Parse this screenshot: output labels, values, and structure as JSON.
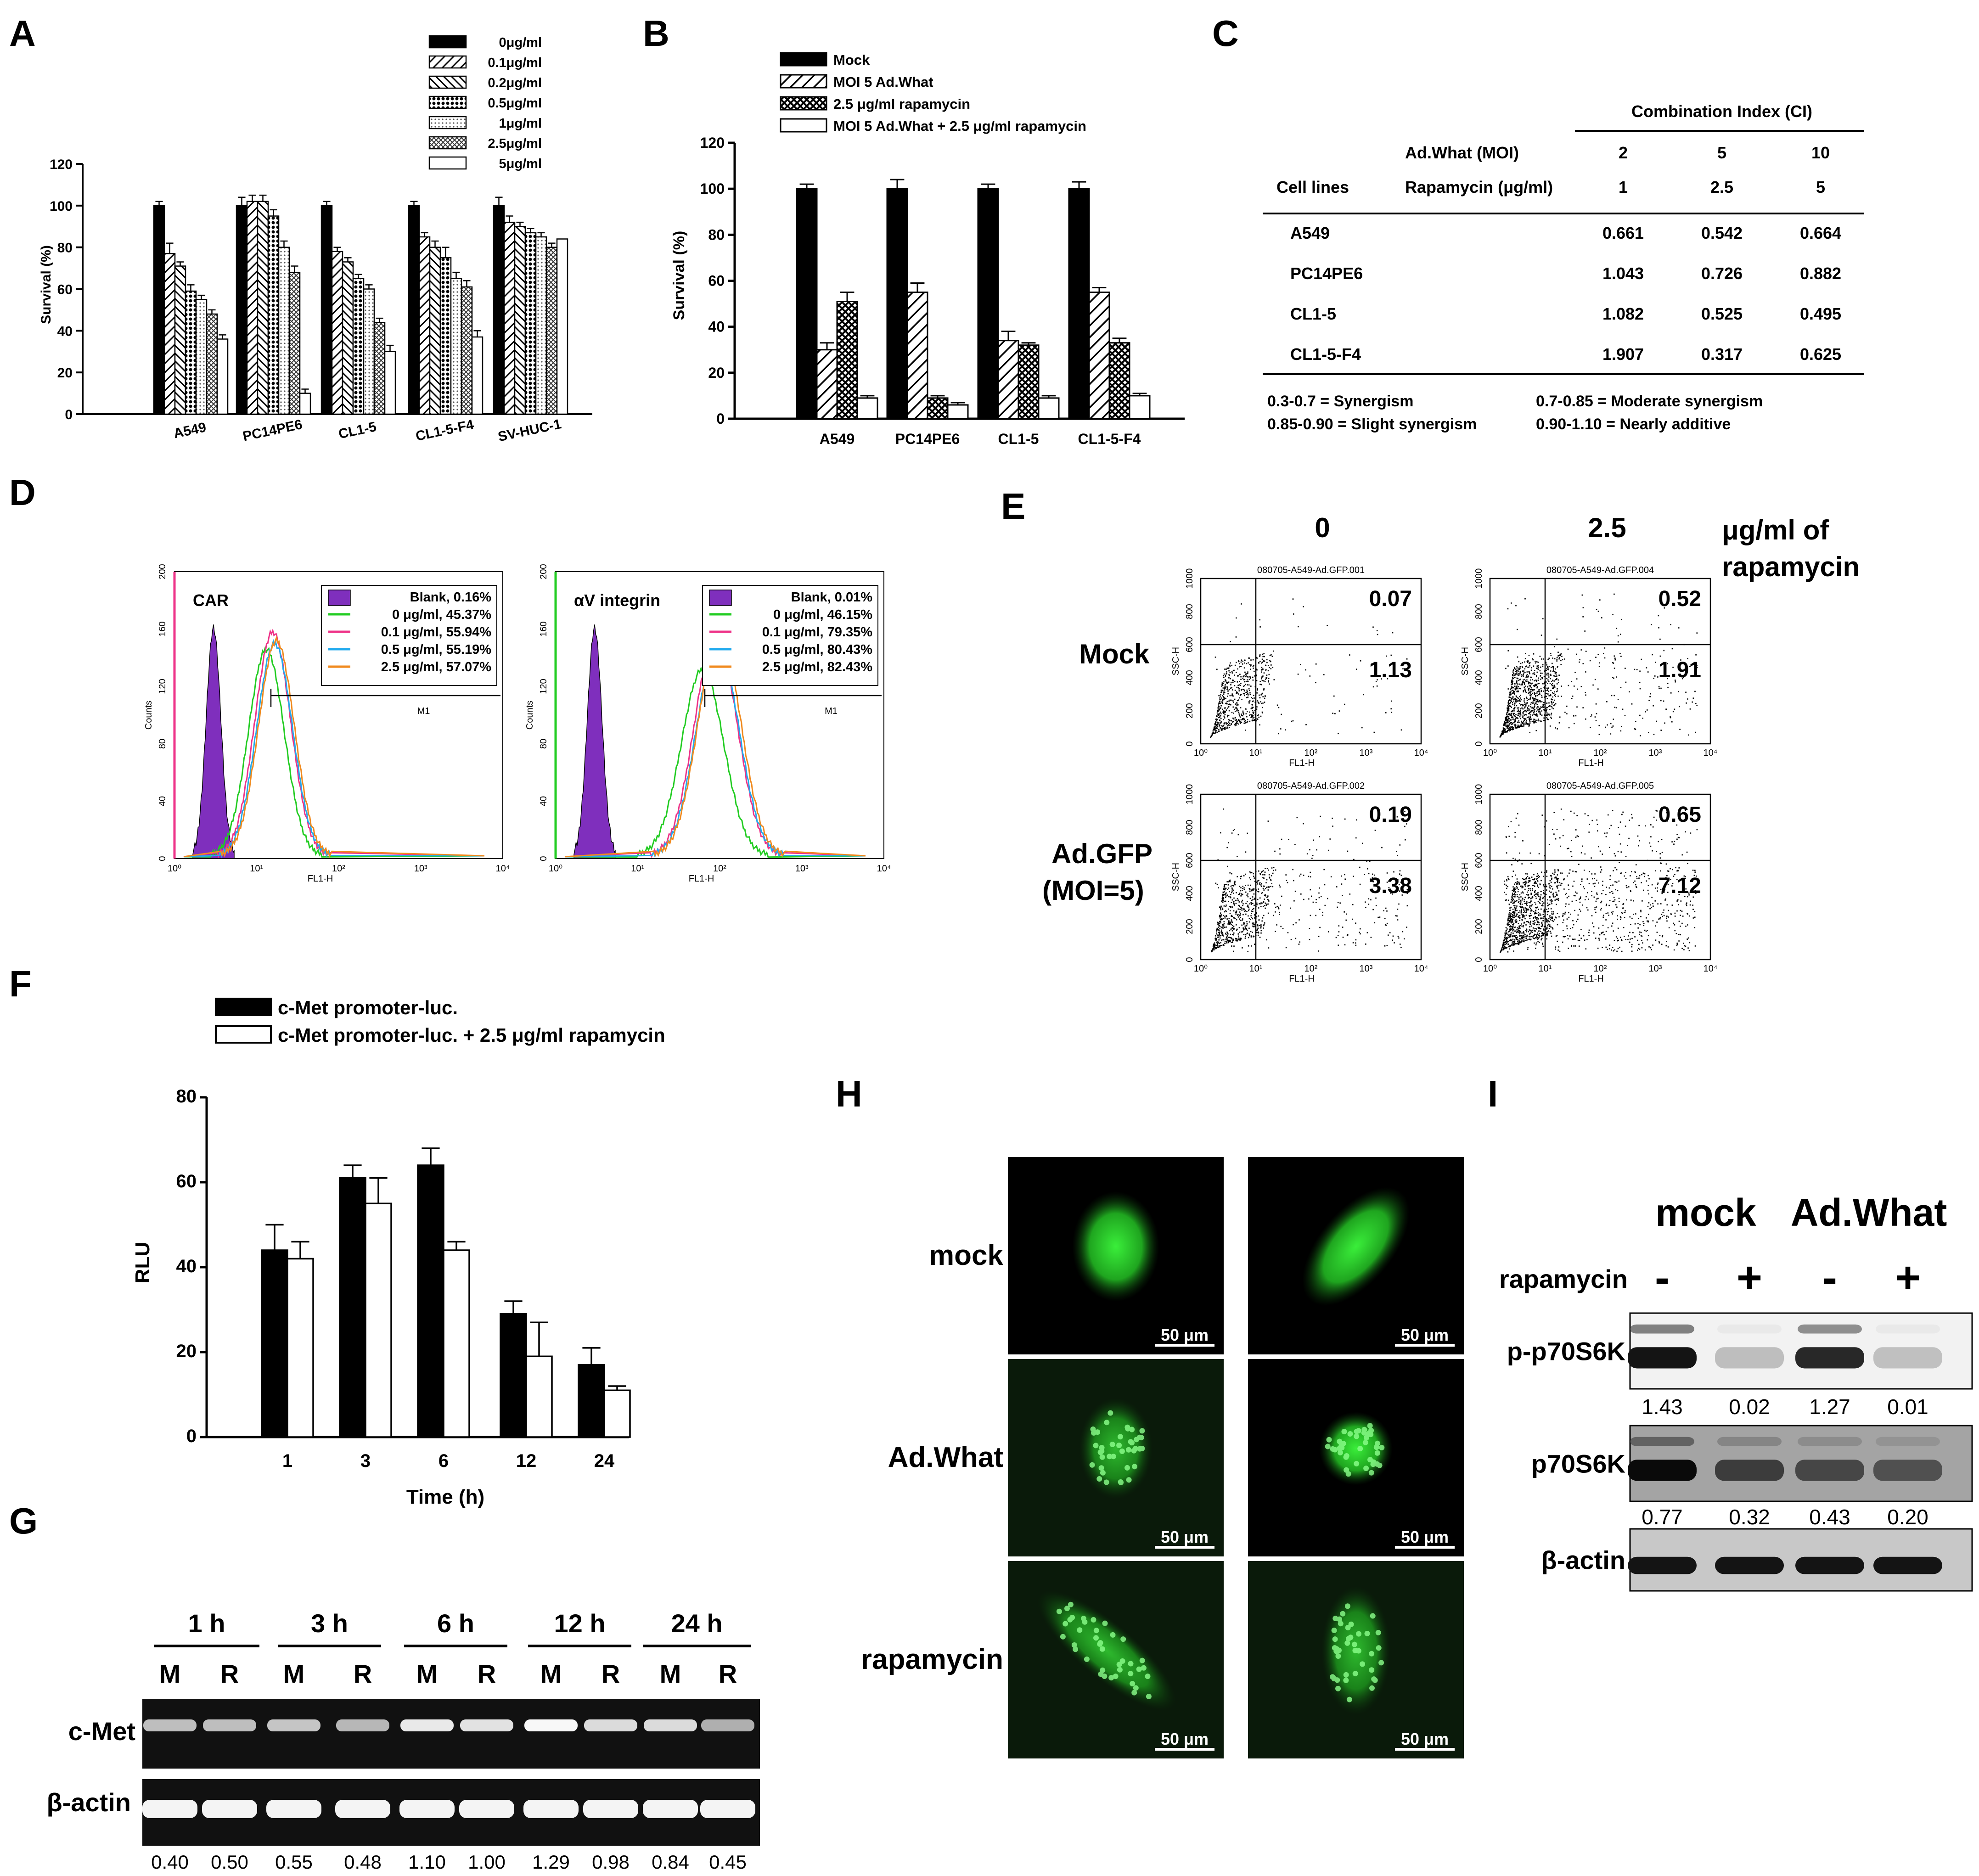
{
  "panel_letters": [
    "A",
    "B",
    "C",
    "D",
    "E",
    "F",
    "G",
    "H",
    "I"
  ],
  "colors": {
    "black": "#000000",
    "white": "#ffffff",
    "purple": "#7f2fbd",
    "green": "#22cc22",
    "magenta": "#ee3388",
    "cyan": "#22aaee",
    "orange": "#f08a1e",
    "gfp": "#2ecc2e"
  },
  "chart_data": [
    {
      "panel": "A",
      "type": "bar",
      "ylabel": "Survival (%)",
      "ylim": [
        0,
        120
      ],
      "yticks": [
        0,
        20,
        40,
        60,
        80,
        100,
        120
      ],
      "categories": [
        "A549",
        "PC14PE6",
        "CL1-5",
        "CL1-5-F4",
        "SV-HUC-1"
      ],
      "series": [
        {
          "name": "0μg/ml",
          "values": [
            100,
            100,
            100,
            100,
            100
          ]
        },
        {
          "name": "0.1μg/ml",
          "values": [
            77,
            102,
            78,
            85,
            92
          ]
        },
        {
          "name": "0.2μg/ml",
          "values": [
            71,
            102,
            73,
            80,
            90
          ]
        },
        {
          "name": "0.5μg/ml",
          "values": [
            59,
            95,
            65,
            75,
            87
          ]
        },
        {
          "name": "1μg/ml",
          "values": [
            55,
            80,
            60,
            65,
            85
          ]
        },
        {
          "name": "2.5μg/ml",
          "values": [
            48,
            68,
            44,
            61,
            80
          ]
        },
        {
          "name": "5μg/ml",
          "values": [
            36,
            10,
            30,
            37,
            84
          ]
        }
      ],
      "errors": [
        [
          2,
          4,
          2,
          2,
          4
        ],
        [
          5,
          3,
          2,
          2,
          3
        ],
        [
          2,
          3,
          2,
          3,
          2
        ],
        [
          3,
          3,
          2,
          5,
          2
        ],
        [
          2,
          3,
          2,
          3,
          2
        ],
        [
          2,
          3,
          2,
          3,
          2
        ],
        [
          2,
          2,
          3,
          3,
          0
        ]
      ]
    },
    {
      "panel": "B",
      "type": "bar",
      "ylabel": "Survival (%)",
      "ylim": [
        0,
        120
      ],
      "yticks": [
        0,
        20,
        40,
        60,
        80,
        100,
        120
      ],
      "categories": [
        "A549",
        "PC14PE6",
        "CL1-5",
        "CL1-5-F4"
      ],
      "series": [
        {
          "name": "Mock",
          "values": [
            100,
            100,
            100,
            100
          ]
        },
        {
          "name": "MOI 5 Ad.What",
          "values": [
            30,
            55,
            34,
            55
          ]
        },
        {
          "name": "2.5 μg/ml rapamycin",
          "values": [
            51,
            9,
            32,
            33
          ]
        },
        {
          "name": "MOI 5 Ad.What + 2.5 μg/ml rapamycin",
          "values": [
            9,
            6,
            9,
            10
          ]
        }
      ],
      "errors": [
        [
          2,
          4,
          2,
          3
        ],
        [
          3,
          4,
          4,
          2
        ],
        [
          4,
          1,
          1,
          2
        ],
        [
          1,
          1,
          1,
          1
        ]
      ]
    },
    {
      "panel": "F",
      "type": "bar",
      "ylabel": "RLU",
      "xlabel": "Time (h)",
      "ylim": [
        0,
        80
      ],
      "yticks": [
        0,
        20,
        40,
        60,
        80
      ],
      "categories": [
        "1",
        "3",
        "6",
        "12",
        "24"
      ],
      "series": [
        {
          "name": "c-Met promoter-luc.",
          "values": [
            44,
            61,
            64,
            29,
            17
          ]
        },
        {
          "name": "c-Met promoter-luc. + 2.5 μg/ml rapamycin",
          "values": [
            42,
            55,
            44,
            19,
            11
          ]
        }
      ],
      "errors": [
        [
          6,
          3,
          4,
          3,
          4
        ],
        [
          4,
          6,
          2,
          8,
          1
        ]
      ]
    }
  ],
  "panel_c": {
    "header": "Combination Index (CI)",
    "row_label_1": "Ad.What (MOI)",
    "row_label_2": "Rapamycin (μg/ml)",
    "cell_lines_label": "Cell lines",
    "moi_values": [
      "2",
      "5",
      "10"
    ],
    "rapa_values": [
      "1",
      "2.5",
      "5"
    ],
    "rows": [
      {
        "name": "A549",
        "v1": "0.661",
        "v2": "0.542",
        "v3": "0.664"
      },
      {
        "name": "PC14PE6",
        "v1": "1.043",
        "v2": "0.726",
        "v3": "0.882"
      },
      {
        "name": "CL1-5",
        "v1": "1.082",
        "v2": "0.525",
        "v3": "0.495"
      },
      {
        "name": "CL1-5-F4",
        "v1": "1.907",
        "v2": "0.317",
        "v3": "0.625"
      }
    ],
    "legend_1": "0.3-0.7     = Synergism",
    "legend_2": "0.7-0.85   = Moderate synergism",
    "legend_3": "0.85-0.90 = Slight synergism",
    "legend_4": "0.90-1.10 = Nearly additive"
  },
  "panel_d": {
    "left": {
      "title": "CAR",
      "entries": [
        "Blank,  0.16%",
        "0 μg/ml, 45.37%",
        "0.1 μg/ml, 55.94%",
        "0.5 μg/ml, 55.19%",
        "2.5 μg/ml, 57.07%"
      ]
    },
    "right": {
      "title": "αV integrin",
      "entries": [
        "Blank,  0.01%",
        "0 μg/ml, 46.15%",
        "0.1 μg/ml, 79.35%",
        "0.5 μg/ml, 80.43%",
        "2.5 μg/ml, 82.43%"
      ]
    },
    "marker": "M1",
    "xaxis": "FL1-H",
    "yaxis": "Counts",
    "yticks": [
      "0",
      "40",
      "80",
      "120",
      "160",
      "200"
    ],
    "xticks": [
      "10⁰",
      "10¹",
      "10²",
      "10³",
      "10⁴"
    ]
  },
  "panel_e": {
    "col_0": "0",
    "col_1": "2.5",
    "unit_1": "μg/ml of",
    "unit_2": "rapamycin",
    "row_mock": "Mock",
    "row_ad_1": "Ad.GFP",
    "row_ad_2": "(MOI=5)",
    "files": [
      "080705-A549-Ad.GFP.001",
      "080705-A549-Ad.GFP.004",
      "080705-A549-Ad.GFP.002",
      "080705-A549-Ad.GFP.005"
    ],
    "upper": [
      "0.07",
      "0.52",
      "0.19",
      "0.65"
    ],
    "lower": [
      "1.13",
      "1.91",
      "3.38",
      "7.12"
    ],
    "xaxis": "FL1-H",
    "yaxis": "SSC-H",
    "yticks": [
      "0",
      "200",
      "400",
      "600",
      "800",
      "1000"
    ],
    "xticks": [
      "10⁰",
      "10¹",
      "10²",
      "10³",
      "10⁴"
    ]
  },
  "panel_g": {
    "times": [
      "1 h",
      "3 h",
      "6 h",
      "12 h",
      "24 h"
    ],
    "lanes": [
      "M",
      "R",
      "M",
      "R",
      "M",
      "R",
      "M",
      "R",
      "M",
      "R"
    ],
    "row1": "c-Met",
    "row2": "β-actin",
    "values": [
      "0.40",
      "0.50",
      "0.55",
      "0.48",
      "1.10",
      "1.00",
      "1.29",
      "0.98",
      "0.84",
      "0.45"
    ],
    "intensity": [
      0.55,
      0.55,
      0.6,
      0.5,
      0.85,
      0.8,
      0.95,
      0.75,
      0.75,
      0.45
    ]
  },
  "panel_h": {
    "rows": [
      "mock",
      "Ad.What",
      "rapamycin"
    ],
    "scale": "50 μm"
  },
  "panel_i": {
    "groups": [
      "mock",
      "Ad.What"
    ],
    "rapa_label": "rapamycin",
    "signs": [
      "-",
      "+",
      "-",
      "+"
    ],
    "rows": [
      "p-p70S6K",
      "p70S6K",
      "β-actin"
    ],
    "p_values": [
      "1.43",
      "0.02",
      "1.27",
      "0.01"
    ],
    "t_values": [
      "0.77",
      "0.32",
      "0.43",
      "0.20"
    ],
    "p_intensity": [
      0.9,
      0.05,
      0.8,
      0.04
    ],
    "t_intensity": [
      0.95,
      0.7,
      0.65,
      0.6
    ]
  }
}
